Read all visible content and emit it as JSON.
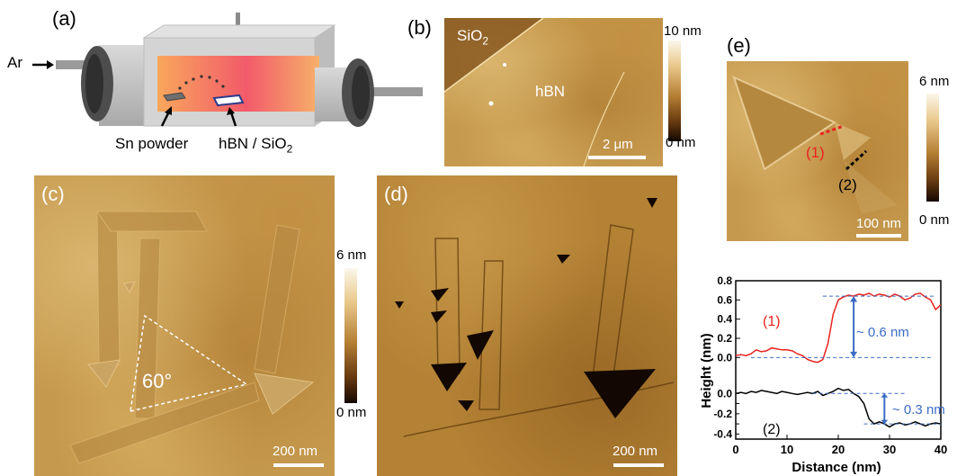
{
  "panel_a": {
    "label": "(a)",
    "ar_label": "Ar",
    "sn_label": "Sn powder",
    "hbn_label": "hBN / SiO",
    "hbn_sub": "2"
  },
  "panel_b": {
    "label": "(b)",
    "sio2": "SiO",
    "sio2_sub": "2",
    "hbn": "hBN",
    "scale": "2 μm",
    "cb_max": "10 nm",
    "cb_min": "0 nm"
  },
  "panel_c": {
    "label": "(c)",
    "angle": "60°",
    "scale": "200 nm",
    "cb_max": "6 nm",
    "cb_min": "0 nm"
  },
  "panel_d": {
    "label": "(d)",
    "scale": "200 nm"
  },
  "panel_e": {
    "label": "(e)",
    "line1": "(1)",
    "line2": "(2)",
    "scale": "100 nm",
    "cb_max": "6 nm",
    "cb_min": "0 nm"
  },
  "chart_data": {
    "type": "line",
    "xlabel": "Distance (nm)",
    "ylabel": "Height (nm)",
    "xlim": [
      0,
      40
    ],
    "x_ticks": [
      "0",
      "10",
      "20",
      "30",
      "40"
    ],
    "upper": {
      "ylim": [
        -0.1,
        0.8
      ],
      "y_ticks": [
        "0.0",
        "0.2",
        "0.4",
        "0.6",
        "0.8"
      ],
      "annotation": "~ 0.6 nm",
      "series": [
        {
          "name": "(1)",
          "color": "#e8231f",
          "x": [
            0,
            1,
            2,
            3,
            4,
            5,
            6,
            7,
            8,
            9,
            10,
            11,
            12,
            13,
            14,
            15,
            16,
            17,
            18,
            19,
            20,
            21,
            22,
            23,
            24,
            25,
            26,
            27,
            28,
            29,
            30,
            31,
            32,
            33,
            34,
            35,
            36,
            37,
            38,
            39,
            40
          ],
          "y": [
            0.02,
            0.03,
            0.02,
            0.04,
            0.08,
            0.06,
            0.07,
            0.1,
            0.09,
            0.08,
            0.08,
            0.07,
            0.04,
            0.02,
            -0.02,
            -0.04,
            -0.05,
            -0.02,
            0.15,
            0.45,
            0.6,
            0.63,
            0.65,
            0.64,
            0.66,
            0.65,
            0.67,
            0.64,
            0.66,
            0.65,
            0.63,
            0.66,
            0.64,
            0.6,
            0.62,
            0.66,
            0.67,
            0.63,
            0.6,
            0.5,
            0.55
          ]
        }
      ]
    },
    "lower": {
      "ylim": [
        -0.45,
        0.1
      ],
      "y_ticks": [
        "-0.4",
        "-0.3",
        "-0.2",
        "-0.1",
        "0.0"
      ],
      "annotation": "~ 0.3 nm",
      "series": [
        {
          "name": "(2)",
          "color": "#000000",
          "x": [
            0,
            1,
            2,
            3,
            4,
            5,
            6,
            7,
            8,
            9,
            10,
            11,
            12,
            13,
            14,
            15,
            16,
            17,
            18,
            19,
            20,
            21,
            22,
            23,
            24,
            25,
            26,
            27,
            28,
            29,
            30,
            31,
            32,
            33,
            34,
            35,
            36,
            37,
            38,
            39,
            40
          ],
          "y": [
            0.0,
            0.01,
            0.0,
            0.02,
            0.01,
            0.03,
            0.02,
            0.01,
            0.0,
            0.02,
            0.01,
            0.0,
            -0.01,
            0.0,
            0.01,
            0.0,
            0.02,
            -0.02,
            0.0,
            0.02,
            0.05,
            0.03,
            0.04,
            0.0,
            -0.03,
            -0.1,
            -0.25,
            -0.3,
            -0.28,
            -0.3,
            -0.33,
            -0.3,
            -0.29,
            -0.31,
            -0.3,
            -0.28,
            -0.3,
            -0.32,
            -0.3,
            -0.29,
            -0.3
          ]
        }
      ]
    }
  }
}
